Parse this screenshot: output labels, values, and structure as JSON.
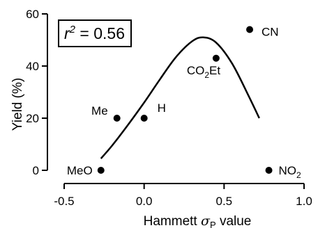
{
  "chart_data": {
    "type": "scatter",
    "xlabel": "Hammett",
    "xlabel_symbol": "σ",
    "xlabel_subscript": "P",
    "xlabel_suffix": "value",
    "ylabel": "Yield (%)",
    "xlim": [
      -0.5,
      1.0
    ],
    "ylim": [
      0,
      60
    ],
    "x_ticks": [
      {
        "value": -0.5,
        "label": "-0.5"
      },
      {
        "value": 0.0,
        "label": "0.0"
      },
      {
        "value": 0.5,
        "label": "0.5"
      },
      {
        "value": 1.0,
        "label": "1.0"
      }
    ],
    "y_ticks": [
      {
        "value": 0,
        "label": "0"
      },
      {
        "value": 20,
        "label": "20"
      },
      {
        "value": 40,
        "label": "40"
      },
      {
        "value": 60,
        "label": "60"
      }
    ],
    "grid": false,
    "annotation": {
      "base": "r",
      "superscript": "2",
      "value": " = 0.56"
    },
    "points": [
      {
        "label": "MeO",
        "x": -0.27,
        "y": 0
      },
      {
        "label": "Me",
        "x": -0.17,
        "y": 20
      },
      {
        "label": "H",
        "x": 0.0,
        "y": 20
      },
      {
        "label": "CO",
        "subscript": "2",
        "label_suffix": "Et",
        "x": 0.45,
        "y": 43
      },
      {
        "label": "CN",
        "x": 0.66,
        "y": 54
      },
      {
        "label": "NO",
        "subscript": "2",
        "x": 0.78,
        "y": 0
      }
    ],
    "fit_curve": [
      {
        "x": -0.27,
        "y": 4.5
      },
      {
        "x": -0.2,
        "y": 9.5
      },
      {
        "x": -0.1,
        "y": 17.5
      },
      {
        "x": 0.0,
        "y": 26
      },
      {
        "x": 0.1,
        "y": 35
      },
      {
        "x": 0.2,
        "y": 43.5
      },
      {
        "x": 0.3,
        "y": 49.5
      },
      {
        "x": 0.37,
        "y": 51
      },
      {
        "x": 0.45,
        "y": 49
      },
      {
        "x": 0.55,
        "y": 41
      },
      {
        "x": 0.65,
        "y": 29
      },
      {
        "x": 0.72,
        "y": 20
      }
    ]
  }
}
